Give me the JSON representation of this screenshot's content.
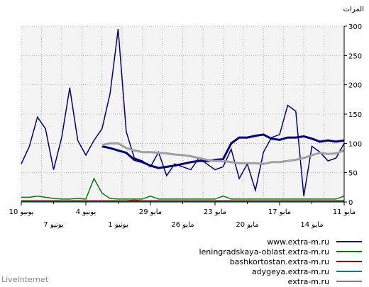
{
  "chart_data": {
    "type": "line",
    "unit": "المرات",
    "ylim": [
      0,
      300
    ],
    "yticks": [
      0,
      50,
      100,
      150,
      200,
      250,
      300
    ],
    "xticks_upper": [
      "10 يونيو",
      "4 يونيو",
      "29 مايو",
      "23 مايو",
      "17 مايو",
      "11 مايو"
    ],
    "xticks_lower": [
      "7 يونيو",
      "1 يونيو",
      "26 مايو",
      "20 مايو",
      "14 مايو"
    ],
    "grid": true,
    "legend": "bottom-right",
    "series": [
      {
        "name": "www.extra-m.ru",
        "color": "#000080",
        "values": [
          65,
          95,
          145,
          125,
          55,
          110,
          195,
          105,
          80,
          105,
          125,
          185,
          295,
          120,
          75,
          70,
          60,
          85,
          45,
          65,
          60,
          55,
          75,
          65,
          55,
          60,
          90,
          40,
          65,
          20,
          85,
          110,
          115,
          165,
          155,
          10,
          95,
          85,
          70,
          75,
          100
        ]
      },
      {
        "name": "leningradskaya-oblast.extra-m.ru",
        "color": "#008000",
        "values": [
          8,
          8,
          10,
          8,
          6,
          5,
          5,
          6,
          5,
          40,
          15,
          6,
          5,
          5,
          5,
          5,
          10,
          5,
          5,
          5,
          5,
          5,
          5,
          5,
          5,
          10,
          5,
          5,
          5,
          5,
          5,
          5,
          5,
          5,
          5,
          5,
          5,
          5,
          5,
          5,
          10
        ]
      },
      {
        "name": "bashkortostan.extra-m.ru",
        "color": "#a00000",
        "values": [
          2,
          2,
          2,
          2,
          2,
          2,
          2,
          2,
          2,
          2,
          2,
          2,
          2,
          2,
          3,
          2,
          2,
          2,
          2,
          2,
          2,
          2,
          2,
          2,
          2,
          2,
          2,
          2,
          2,
          2,
          2,
          2,
          2,
          2,
          2,
          2,
          2,
          2,
          2,
          2,
          2
        ]
      },
      {
        "name": "adygeya.extra-m.ru",
        "color": "#008080",
        "values": [
          1,
          1,
          1,
          1,
          1,
          1,
          1,
          1,
          1,
          1,
          1,
          1,
          1,
          1,
          1,
          1,
          1,
          1,
          1,
          1,
          1,
          1,
          1,
          1,
          1,
          1,
          1,
          1,
          1,
          1,
          1,
          1,
          1,
          1,
          1,
          1,
          1,
          1,
          1,
          1,
          1
        ]
      },
      {
        "name": "extra-m.ru",
        "color": "#808080",
        "values": [
          null,
          null,
          null,
          null,
          null,
          null,
          null,
          null,
          null,
          null,
          null,
          null,
          null,
          null,
          null,
          null,
          null,
          null,
          null,
          null,
          null,
          null,
          null,
          null,
          null,
          null,
          null,
          null,
          null,
          null,
          null,
          null,
          null,
          null,
          null,
          null,
          null,
          null,
          null,
          null,
          null
        ]
      }
    ],
    "moving_averages": [
      {
        "color": "#000080",
        "values": [
          null,
          null,
          null,
          null,
          null,
          null,
          null,
          null,
          null,
          null,
          95,
          92,
          88,
          84,
          72,
          68,
          62,
          58,
          60,
          62,
          65,
          68,
          70,
          70,
          72,
          73,
          100,
          110,
          110,
          113,
          115,
          108,
          106,
          110,
          110,
          112,
          108,
          103,
          105,
          103,
          105
        ]
      },
      {
        "color": "#a0a0a0",
        "values": [
          null,
          null,
          null,
          null,
          null,
          null,
          null,
          null,
          null,
          null,
          97,
          100,
          100,
          92,
          88,
          85,
          85,
          84,
          83,
          81,
          80,
          78,
          75,
          72,
          70,
          70,
          68,
          66,
          66,
          66,
          65,
          68,
          68,
          70,
          72,
          75,
          80,
          84,
          82,
          83,
          88
        ]
      }
    ]
  },
  "legend": [
    {
      "label": "www.extra-m.ru",
      "color": "#000080"
    },
    {
      "label": "leningradskaya-oblast.extra-m.ru",
      "color": "#008000"
    },
    {
      "label": "bashkortostan.extra-m.ru",
      "color": "#a00000"
    },
    {
      "label": "adygeya.extra-m.ru",
      "color": "#008080"
    },
    {
      "label": "extra-m.ru",
      "color": "#808080"
    }
  ],
  "brand": "LiveInternet"
}
